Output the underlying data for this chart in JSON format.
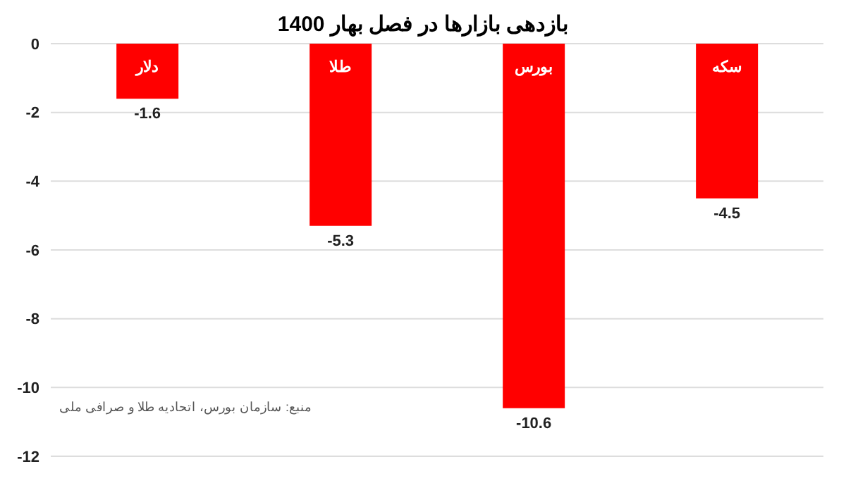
{
  "chart_data": {
    "type": "bar",
    "title": "بازدهی بازارها در فصل بهار 1400",
    "categories": [
      "دلار",
      "طلا",
      "بورس",
      "سکه"
    ],
    "values": [
      -1.6,
      -5.3,
      -10.6,
      -4.5
    ],
    "color": "#ff0000",
    "ylim": [
      -12,
      0
    ],
    "yticks": [
      0,
      -2,
      -4,
      -6,
      -8,
      -10,
      -12
    ],
    "grid": "y",
    "data_labels": true,
    "annotations": [
      "منبع: سازمان بورس، اتحادیه طلا و صرافی ملی"
    ]
  }
}
